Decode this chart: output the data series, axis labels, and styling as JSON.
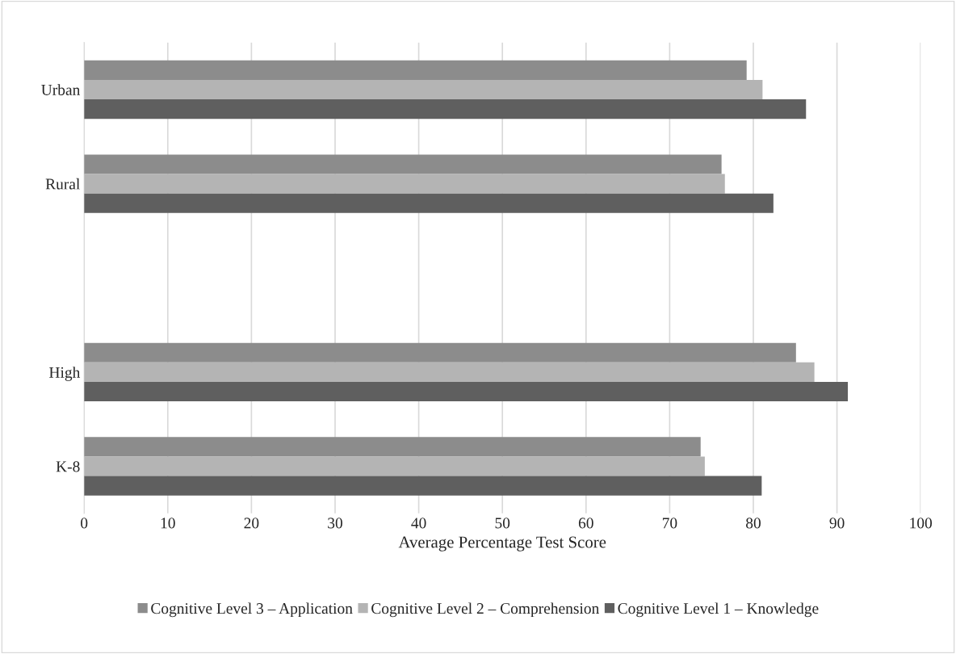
{
  "chart_data": {
    "type": "bar",
    "orientation": "horizontal",
    "xlabel": "Average Percentage Test Score",
    "categories": [
      "Urban",
      "Rural",
      null,
      "High",
      "K-8"
    ],
    "series": [
      {
        "name": "Cognitive Level 3 – Application",
        "color": "#8c8c8c",
        "values": [
          79.2,
          76.2,
          null,
          85.1,
          73.7
        ]
      },
      {
        "name": "Cognitive Level 2 – Comprehension",
        "color": "#b4b4b4",
        "values": [
          81.1,
          76.6,
          null,
          87.3,
          74.2
        ]
      },
      {
        "name": "Cognitive Level 1 – Knowledge",
        "color": "#5f5f5f",
        "values": [
          86.3,
          82.4,
          null,
          91.3,
          81.0
        ]
      }
    ],
    "xlim": [
      0,
      100
    ],
    "xticks": [
      0,
      10,
      20,
      30,
      40,
      50,
      60,
      70,
      80,
      90,
      100
    ],
    "grid": "x",
    "legend": "bottom"
  }
}
